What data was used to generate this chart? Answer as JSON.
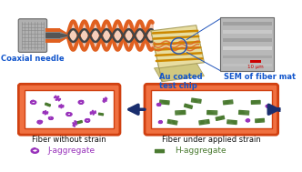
{
  "bg_color": "#ffffff",
  "top_section": {
    "coaxial_label": "Coaxial needle",
    "chip_label": "Au coated\ntest chip",
    "sem_label": "SEM of fiber mat",
    "scale_label": "10 μm",
    "label_color": "#1155cc"
  },
  "bottom_left": {
    "label": "Fiber without strain",
    "box_bg": "#f07040",
    "inner_bg": "#ffffff",
    "border_color": "#d04010"
  },
  "bottom_right": {
    "label": "Fiber under applied strain",
    "box_bg": "#f07040",
    "inner_bg": "#ffffff",
    "border_color": "#d04010"
  },
  "legend": {
    "j_color": "#9933bb",
    "j_label": "J-aggregate",
    "h_color": "#4a7a30",
    "h_label": "H-aggregate"
  },
  "arrow_color": "#1a2e6e",
  "wave_orange": "#e06020",
  "wave_dark": "#444444",
  "needle_gray": "#999999",
  "needle_dark": "#555555",
  "chip_base": "#e8dda0",
  "chip_line": "#cc8800",
  "sem_bg": "#b8b8b8"
}
